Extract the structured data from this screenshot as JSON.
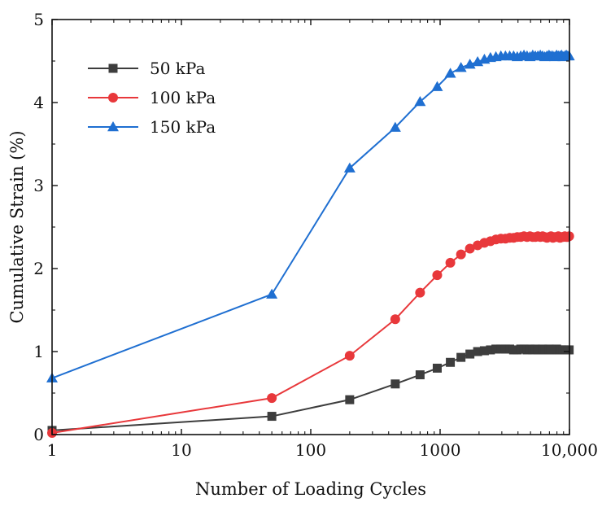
{
  "chart_data": {
    "type": "line",
    "title": "",
    "xlabel": "Number of Loading Cycles",
    "ylabel": "Cumulative Strain (%)",
    "xscale": "log",
    "xlim": [
      1,
      10000
    ],
    "ylim": [
      0,
      5
    ],
    "x_ticks": [
      1,
      10,
      100,
      1000,
      10000
    ],
    "x_tick_labels": [
      "1",
      "10",
      "100",
      "1000",
      "10,000"
    ],
    "y_ticks": [
      0,
      1,
      2,
      3,
      4,
      5
    ],
    "y_tick_labels": [
      "0",
      "1",
      "2",
      "3",
      "4",
      "5"
    ],
    "grid": false,
    "legend_position": "top-left",
    "series": [
      {
        "name": "50 kPa",
        "color": "#3d3d3d",
        "marker": "square",
        "x": [
          1,
          50,
          200,
          450,
          700,
          950,
          1200,
          1450,
          1700,
          1950,
          2200,
          2450,
          2700,
          2950,
          3200,
          3450,
          3700,
          3950,
          4200,
          4450,
          4700,
          4950,
          5200,
          5450,
          5700,
          5950,
          6200,
          6450,
          6700,
          6950,
          7200,
          7450,
          7700,
          7950,
          8200,
          8450,
          8700,
          8950,
          9200,
          9450,
          9700,
          9950
        ],
        "values": [
          0.05,
          0.22,
          0.42,
          0.61,
          0.72,
          0.8,
          0.87,
          0.93,
          0.97,
          1.0,
          1.01,
          1.02,
          1.03,
          1.03,
          1.03,
          1.03,
          1.02,
          1.02,
          1.03,
          1.03,
          1.02,
          1.03,
          1.02,
          1.03,
          1.02,
          1.02,
          1.03,
          1.02,
          1.02,
          1.03,
          1.02,
          1.02,
          1.02,
          1.03,
          1.02,
          1.02,
          1.02,
          1.02,
          1.02,
          1.02,
          1.02,
          1.02
        ]
      },
      {
        "name": "100 kPa",
        "color": "#e8383b",
        "marker": "circle",
        "x": [
          1,
          50,
          200,
          450,
          700,
          950,
          1200,
          1450,
          1700,
          1950,
          2200,
          2450,
          2700,
          2950,
          3200,
          3450,
          3700,
          3950,
          4200,
          4450,
          4700,
          4950,
          5200,
          5450,
          5700,
          5950,
          6200,
          6450,
          6700,
          6950,
          7200,
          7450,
          7700,
          7950,
          8200,
          8450,
          8700,
          8950,
          9200,
          9450,
          9700,
          9950
        ],
        "values": [
          0.02,
          0.44,
          0.95,
          1.39,
          1.71,
          1.92,
          2.07,
          2.17,
          2.24,
          2.28,
          2.31,
          2.33,
          2.35,
          2.36,
          2.36,
          2.37,
          2.37,
          2.38,
          2.38,
          2.39,
          2.38,
          2.39,
          2.38,
          2.38,
          2.39,
          2.38,
          2.39,
          2.38,
          2.37,
          2.38,
          2.39,
          2.37,
          2.38,
          2.38,
          2.39,
          2.37,
          2.38,
          2.38,
          2.39,
          2.38,
          2.38,
          2.39
        ]
      },
      {
        "name": "150 kPa",
        "color": "#1f6fd1",
        "marker": "triangle",
        "x": [
          1,
          50,
          200,
          450,
          700,
          950,
          1200,
          1450,
          1700,
          1950,
          2200,
          2450,
          2700,
          2950,
          3200,
          3450,
          3700,
          3950,
          4200,
          4450,
          4700,
          4950,
          5200,
          5450,
          5700,
          5950,
          6200,
          6450,
          6700,
          6950,
          7200,
          7450,
          7700,
          7950,
          8200,
          8450,
          8700,
          8950,
          9200,
          9450,
          9700,
          9950
        ],
        "values": [
          0.68,
          1.69,
          3.21,
          3.7,
          4.01,
          4.19,
          4.35,
          4.42,
          4.46,
          4.49,
          4.52,
          4.54,
          4.55,
          4.56,
          4.56,
          4.56,
          4.56,
          4.55,
          4.56,
          4.57,
          4.56,
          4.55,
          4.57,
          4.56,
          4.56,
          4.57,
          4.56,
          4.55,
          4.56,
          4.57,
          4.56,
          4.56,
          4.55,
          4.57,
          4.56,
          4.56,
          4.57,
          4.55,
          4.56,
          4.57,
          4.56,
          4.56
        ]
      }
    ]
  }
}
